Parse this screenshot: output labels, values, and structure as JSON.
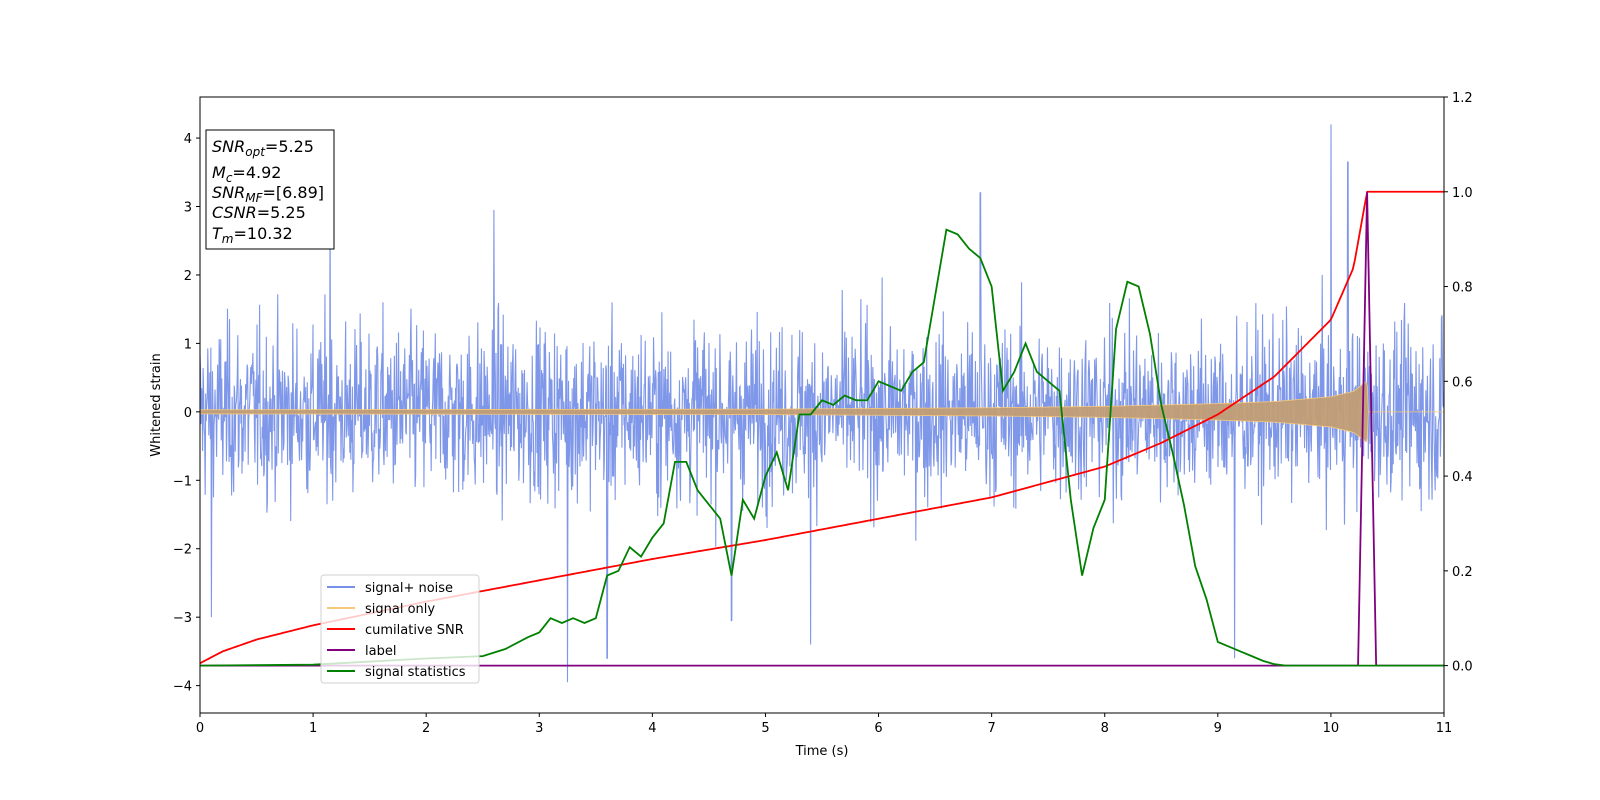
{
  "chart_data": {
    "type": "line",
    "xlabel": "Time (s)",
    "ylabel": "Whitened strain",
    "xlim": [
      0,
      11
    ],
    "ylim": [
      -4.4,
      4.6
    ],
    "y2lim": [
      -0.1,
      1.2
    ],
    "x_ticks": [
      "0",
      "1",
      "2",
      "3",
      "4",
      "5",
      "6",
      "7",
      "8",
      "9",
      "10",
      "11"
    ],
    "y_ticks": [
      "4",
      "3",
      "2",
      "1",
      "0",
      "−1",
      "−2",
      "−3",
      "−4"
    ],
    "y2_ticks": [
      "1.2",
      "1.0",
      "0.8",
      "0.6",
      "0.4",
      "0.2",
      "0.0"
    ],
    "grid": false,
    "legend_position": "lower-left",
    "annotation": {
      "lines": [
        {
          "base": "SNR",
          "sub": "opt",
          "value": "=5.25"
        },
        {
          "base": "M",
          "sub": "c",
          "value": "=4.92"
        },
        {
          "base": "SNR",
          "sub": "MF",
          "value": "=[6.89]"
        },
        {
          "base": "CSNR",
          "sub": "",
          "value": "=5.25"
        },
        {
          "base": "T",
          "sub": "m",
          "value": "=10.32"
        }
      ]
    },
    "series": [
      {
        "name": "signal+ noise",
        "color": "#7891e8",
        "axis": "left",
        "kind": "noise-band",
        "typical_envelope": 1.6,
        "spike_peaks": [
          [
            1.15,
            3.2
          ],
          [
            2.6,
            2.95
          ],
          [
            6.9,
            3.2
          ],
          [
            10.0,
            4.2
          ],
          [
            10.15,
            3.65
          ],
          [
            3.25,
            -3.95
          ],
          [
            3.6,
            -3.6
          ],
          [
            5.4,
            -3.4
          ],
          [
            4.7,
            -3.05
          ],
          [
            9.15,
            -3.6
          ],
          [
            0.1,
            -3.0
          ]
        ]
      },
      {
        "name": "signal only",
        "color": "#f5c87a",
        "axis": "left",
        "kind": "chirp-envelope",
        "envelope": {
          "x": [
            0,
            5,
            6,
            7,
            8,
            8.5,
            9,
            9.5,
            10,
            10.2,
            10.32,
            10.33,
            11
          ],
          "y": [
            0.03,
            0.04,
            0.05,
            0.06,
            0.08,
            0.1,
            0.12,
            0.15,
            0.22,
            0.3,
            0.45,
            0.0,
            0.0
          ]
        }
      },
      {
        "name": "cumilative SNR",
        "color": "#ff0000",
        "axis": "right",
        "x": [
          0,
          0.2,
          0.5,
          1,
          2,
          3,
          4,
          5,
          6,
          7,
          8,
          8.5,
          9,
          9.5,
          10,
          10.2,
          10.32,
          11
        ],
        "y": [
          0.005,
          0.03,
          0.055,
          0.085,
          0.135,
          0.18,
          0.225,
          0.265,
          0.31,
          0.355,
          0.42,
          0.47,
          0.53,
          0.61,
          0.73,
          0.84,
          1.0,
          1.0
        ]
      },
      {
        "name": "label",
        "color": "#800080",
        "axis": "right",
        "x": [
          0,
          10.24,
          10.32,
          10.4,
          11
        ],
        "y": [
          0,
          0,
          1,
          0,
          0
        ]
      },
      {
        "name": "signal statistics",
        "color": "#008000",
        "axis": "right",
        "x": [
          0,
          1,
          2,
          2.5,
          2.7,
          2.9,
          3.0,
          3.1,
          3.2,
          3.3,
          3.4,
          3.5,
          3.6,
          3.7,
          3.8,
          3.9,
          4.0,
          4.1,
          4.2,
          4.3,
          4.4,
          4.5,
          4.6,
          4.7,
          4.8,
          4.9,
          5.0,
          5.1,
          5.2,
          5.3,
          5.4,
          5.5,
          5.6,
          5.7,
          5.8,
          5.9,
          6.0,
          6.1,
          6.2,
          6.3,
          6.4,
          6.5,
          6.6,
          6.7,
          6.8,
          6.9,
          7.0,
          7.1,
          7.2,
          7.3,
          7.4,
          7.5,
          7.6,
          7.7,
          7.8,
          7.9,
          8.0,
          8.1,
          8.2,
          8.3,
          8.4,
          8.5,
          8.6,
          8.7,
          8.8,
          8.9,
          9.0,
          9.1,
          9.2,
          9.3,
          9.4,
          9.5,
          9.6,
          10.0,
          10.5,
          11.0
        ],
        "y": [
          0.0,
          0.002,
          0.015,
          0.02,
          0.035,
          0.06,
          0.07,
          0.1,
          0.09,
          0.1,
          0.09,
          0.1,
          0.19,
          0.2,
          0.25,
          0.23,
          0.27,
          0.3,
          0.43,
          0.43,
          0.37,
          0.34,
          0.31,
          0.19,
          0.35,
          0.31,
          0.4,
          0.45,
          0.37,
          0.53,
          0.53,
          0.56,
          0.55,
          0.57,
          0.56,
          0.56,
          0.6,
          0.59,
          0.58,
          0.62,
          0.64,
          0.78,
          0.92,
          0.91,
          0.88,
          0.86,
          0.8,
          0.58,
          0.62,
          0.68,
          0.62,
          0.6,
          0.58,
          0.35,
          0.19,
          0.29,
          0.35,
          0.71,
          0.81,
          0.8,
          0.7,
          0.55,
          0.45,
          0.34,
          0.21,
          0.14,
          0.05,
          0.04,
          0.03,
          0.02,
          0.01,
          0.003,
          0.0,
          0.0,
          0.0,
          0.0
        ]
      }
    ]
  }
}
